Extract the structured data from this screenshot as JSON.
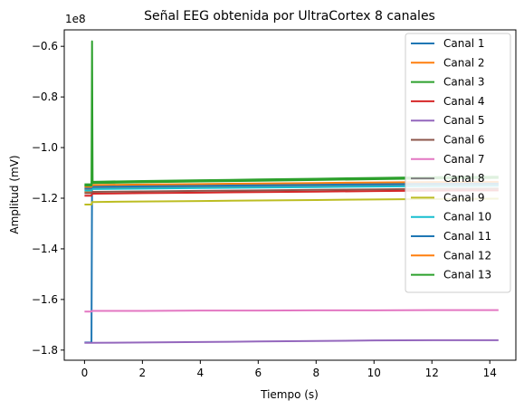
{
  "chart_data": {
    "type": "line",
    "title": "Señal EEG obtenida por UltraCortex 8 canales",
    "xlabel": "Tiempo (s)",
    "ylabel": "Amplitud (mV)",
    "y_offset_label": "1e8",
    "xlim": [
      -0.7,
      14.9
    ],
    "ylim": [
      -1.84,
      -0.535
    ],
    "x_ticks": [
      0,
      2,
      4,
      6,
      8,
      10,
      12,
      14
    ],
    "x_tick_labels": [
      "0",
      "2",
      "4",
      "6",
      "8",
      "10",
      "12",
      "14"
    ],
    "y_ticks": [
      -0.6,
      -0.8,
      -1.0,
      -1.2,
      -1.4,
      -1.6,
      -1.8
    ],
    "y_tick_labels": [
      "−0.6",
      "−0.8",
      "−1.0",
      "−1.2",
      "−1.4",
      "−1.6",
      "−1.8"
    ],
    "grid": false,
    "legend_position": "top-right",
    "series": [
      {
        "name": "Canal 1",
        "color": "#1f77b4",
        "x": [
          0,
          0.24,
          0.26,
          2,
          4,
          6,
          8,
          10,
          12,
          14.3
        ],
        "y": [
          -1.77,
          -1.77,
          -1.152,
          -1.151,
          -1.149,
          -1.147,
          -1.145,
          -1.143,
          -1.142,
          -1.141
        ]
      },
      {
        "name": "Canal 2",
        "color": "#ff7f0e",
        "x": [
          0,
          0.24,
          0.26,
          2,
          4,
          6,
          8,
          10,
          12,
          14.3
        ],
        "y": [
          -1.175,
          -1.175,
          -1.162,
          -1.16,
          -1.158,
          -1.156,
          -1.154,
          -1.152,
          -1.15,
          -1.149
        ]
      },
      {
        "name": "Canal 3",
        "color": "#2ca02c",
        "x": [
          0,
          0.24,
          0.26,
          0.28,
          2,
          4,
          6,
          8,
          10,
          12,
          14.3
        ],
        "y": [
          -1.145,
          -1.145,
          -0.58,
          -1.135,
          -1.132,
          -1.129,
          -1.126,
          -1.123,
          -1.12,
          -1.117,
          -1.115
        ]
      },
      {
        "name": "Canal 4",
        "color": "#d62728",
        "x": [
          0,
          0.24,
          0.26,
          2,
          4,
          6,
          8,
          10,
          12,
          14.3
        ],
        "y": [
          -1.19,
          -1.19,
          -1.182,
          -1.18,
          -1.178,
          -1.176,
          -1.174,
          -1.172,
          -1.17,
          -1.169
        ]
      },
      {
        "name": "Canal 5",
        "color": "#9467bd",
        "x": [
          0,
          0.24,
          0.26,
          2,
          4,
          6,
          8,
          10,
          12,
          14.3
        ],
        "y": [
          -1.771,
          -1.771,
          -1.771,
          -1.77,
          -1.768,
          -1.766,
          -1.764,
          -1.762,
          -1.761,
          -1.761
        ]
      },
      {
        "name": "Canal 6",
        "color": "#8c564b",
        "x": [
          0,
          0.24,
          0.26,
          2,
          4,
          6,
          8,
          10,
          12,
          14.3
        ],
        "y": [
          -1.18,
          -1.18,
          -1.175,
          -1.173,
          -1.171,
          -1.169,
          -1.167,
          -1.165,
          -1.163,
          -1.162
        ]
      },
      {
        "name": "Canal 7",
        "color": "#e377c2",
        "x": [
          0,
          0.24,
          0.26,
          2,
          4,
          6,
          8,
          10,
          12,
          14.3
        ],
        "y": [
          -1.648,
          -1.648,
          -1.645,
          -1.645,
          -1.644,
          -1.644,
          -1.643,
          -1.643,
          -1.642,
          -1.642
        ]
      },
      {
        "name": "Canal 8",
        "color": "#7f7f7f",
        "x": [
          0,
          0.24,
          0.26,
          2,
          4,
          6,
          8,
          10,
          12,
          14.3
        ],
        "y": [
          -1.165,
          -1.165,
          -1.158,
          -1.156,
          -1.154,
          -1.152,
          -1.15,
          -1.148,
          -1.146,
          -1.145
        ]
      },
      {
        "name": "Canal 9",
        "color": "#bcbd22",
        "x": [
          0,
          0.24,
          0.26,
          2,
          4,
          6,
          8,
          10,
          12,
          14.3
        ],
        "y": [
          -1.225,
          -1.225,
          -1.215,
          -1.213,
          -1.211,
          -1.209,
          -1.207,
          -1.205,
          -1.203,
          -1.202
        ]
      },
      {
        "name": "Canal 10",
        "color": "#17becf",
        "x": [
          0,
          0.24,
          0.26,
          2,
          4,
          6,
          8,
          10,
          12,
          14.3
        ],
        "y": [
          -1.17,
          -1.17,
          -1.164,
          -1.162,
          -1.16,
          -1.158,
          -1.156,
          -1.154,
          -1.152,
          -1.151
        ]
      },
      {
        "name": "Canal 11",
        "color": "#1f77b4",
        "x": [
          0,
          0.24,
          0.26,
          2,
          4,
          6,
          8,
          10,
          12,
          14.3
        ],
        "y": [
          -1.16,
          -1.16,
          -1.155,
          -1.153,
          -1.151,
          -1.149,
          -1.147,
          -1.145,
          -1.143,
          -1.142
        ]
      },
      {
        "name": "Canal 12",
        "color": "#ff7f0e",
        "x": [
          0,
          0.24,
          0.26,
          2,
          4,
          6,
          8,
          10,
          12,
          14.3
        ],
        "y": [
          -1.155,
          -1.155,
          -1.148,
          -1.146,
          -1.144,
          -1.142,
          -1.14,
          -1.138,
          -1.136,
          -1.135
        ]
      },
      {
        "name": "Canal 13",
        "color": "#2ca02c",
        "x": [
          0,
          0.24,
          0.26,
          2,
          4,
          6,
          8,
          10,
          12,
          14.3
        ],
        "y": [
          -1.15,
          -1.15,
          -1.14,
          -1.137,
          -1.134,
          -1.131,
          -1.128,
          -1.125,
          -1.122,
          -1.12
        ]
      }
    ]
  }
}
